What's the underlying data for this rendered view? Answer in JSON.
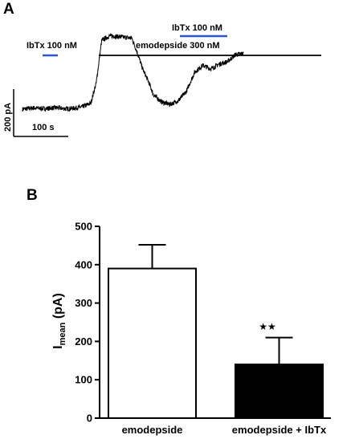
{
  "panel_a": {
    "label": "A",
    "ibtx_first_label": "IbTx 100 nM",
    "ibtx_second_label": "IbTx 100 nM",
    "emodepside_label": "emodepside 300 nM",
    "scale_y_label": "200 pA",
    "scale_x_label": "100 s",
    "drug_bar_color": "#2f56c8"
  },
  "panel_b": {
    "label": "B",
    "ylabel_main": "I",
    "ylabel_sub": "mean",
    "ylabel_unit": " (pA)",
    "significance": "★★"
  },
  "chart_data": [
    {
      "type": "line",
      "panel": "A",
      "title": "",
      "series": [
        {
          "name": "",
          "x": [
            0,
            20,
            40,
            60,
            80,
            95,
            110,
            125,
            135,
            145,
            160,
            180,
            200,
            210,
            220,
            230,
            240,
            255,
            270,
            285,
            300,
            315,
            330,
            345,
            360,
            375,
            390,
            405
          ],
          "y": [
            0,
            5,
            2,
            6,
            2,
            4,
            10,
            25,
            110,
            290,
            310,
            305,
            300,
            240,
            170,
            120,
            60,
            30,
            20,
            35,
            75,
            155,
            185,
            170,
            190,
            200,
            230,
            235
          ]
        }
      ],
      "scale_bar": {
        "current_pA": 200,
        "time_s": 100
      }
    },
    {
      "type": "bar",
      "panel": "B",
      "categories": [
        "emodepside",
        "emodepside + IbTx"
      ],
      "values": [
        390,
        140
      ],
      "errors": [
        62,
        70
      ],
      "fills": [
        "#ffffff",
        "#000000"
      ],
      "ylim": [
        0,
        500
      ],
      "yticks": [
        "0",
        "100",
        "200",
        "300",
        "400",
        "500"
      ],
      "xlabel": "",
      "ylabel": "I mean (pA)"
    }
  ]
}
